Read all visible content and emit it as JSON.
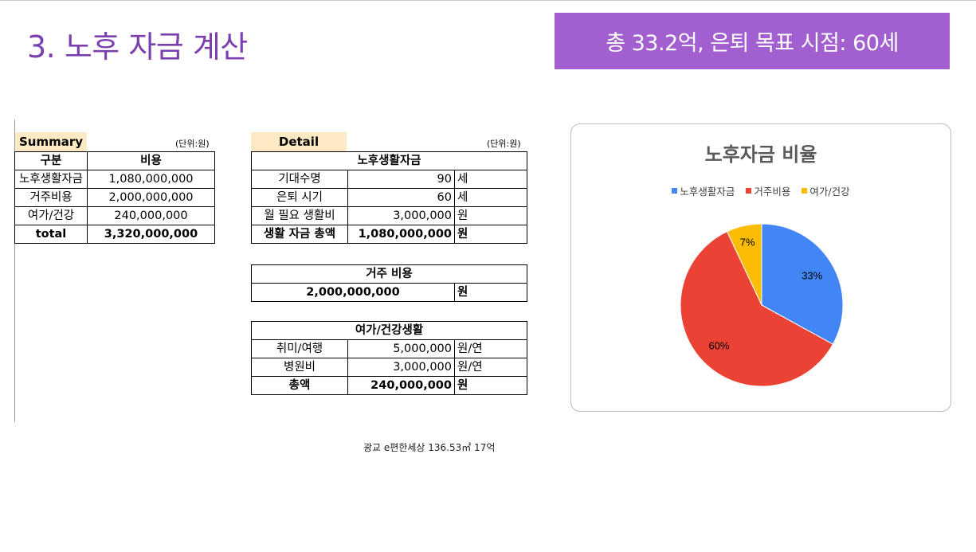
{
  "slide": {
    "title": "3. 노후 자금 계산",
    "banner": "총 33.2억, 은퇴 목표 시점: 60세"
  },
  "summary": {
    "tag": "Summary",
    "unit": "(단위:원)",
    "headers": [
      "구분",
      "비용"
    ],
    "rows": [
      {
        "label": "노후생활자금",
        "value": "1,080,000,000"
      },
      {
        "label": "거주비용",
        "value": "2,000,000,000"
      },
      {
        "label": "여가/건강",
        "value": "240,000,000"
      },
      {
        "label": "total",
        "value": "3,320,000,000"
      }
    ]
  },
  "detail": {
    "tag": "Detail",
    "unit": "(단위:원)",
    "living": {
      "title": "노후생활자금",
      "rows": [
        {
          "label": "기대수명",
          "value": "90",
          "unit": "세"
        },
        {
          "label": "은퇴 시기",
          "value": "60",
          "unit": "세"
        },
        {
          "label": "월 필요 생활비",
          "value": "3,000,000",
          "unit": "원"
        },
        {
          "label": "생활 자금 총액",
          "value": "1,080,000,000",
          "unit": "원"
        }
      ]
    },
    "housing": {
      "title": "거주 비용",
      "value": "2,000,000,000",
      "unit": "원"
    },
    "leisure": {
      "title": "여가/건강생활",
      "rows": [
        {
          "label": "취미/여행",
          "value": "5,000,000",
          "unit": "원/연"
        },
        {
          "label": "병원비",
          "value": "3,000,000",
          "unit": "원/연"
        },
        {
          "label": "총액",
          "value": "240,000,000",
          "unit": "원"
        }
      ]
    }
  },
  "footnote": "광교 e편한세상 136.53㎡ 17억",
  "chart_data": {
    "type": "pie",
    "title": "노후자금 비율",
    "legend_position": "top",
    "categories": [
      "노후생활자금",
      "거주비용",
      "여가/건강"
    ],
    "values": [
      33,
      60,
      7
    ],
    "data_labels": [
      "33%",
      "60%",
      "7%"
    ],
    "colors": [
      "#4285f4",
      "#ea4335",
      "#fbbc04"
    ]
  }
}
